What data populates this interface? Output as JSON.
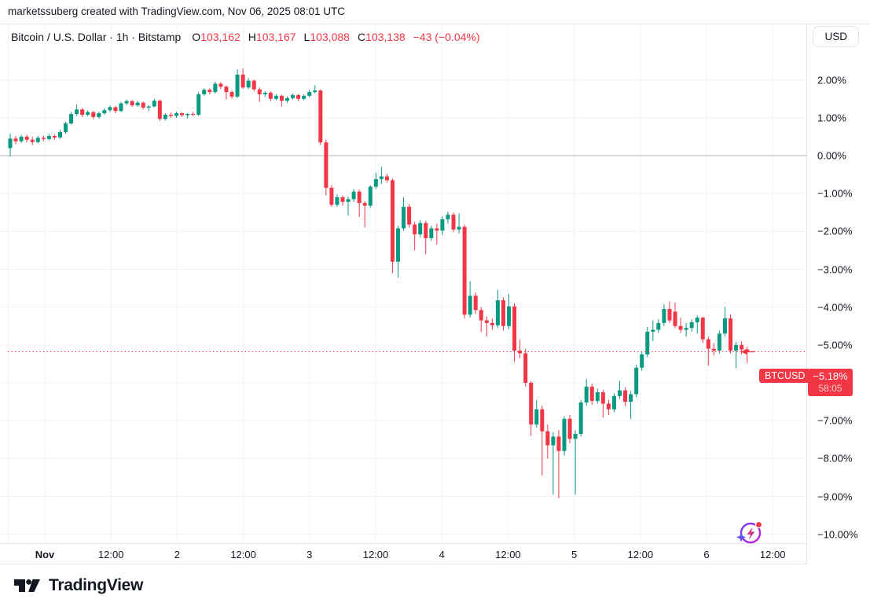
{
  "attribution": "marketssuberg created with TradingView.com, Nov 06, 2025 08:01 UTC",
  "legend": {
    "title": "Bitcoin / U.S. Dollar · 1h · Bitstamp",
    "o_label": "O",
    "o": "103,162",
    "h_label": "H",
    "h": "103,167",
    "l_label": "L",
    "l": "103,088",
    "c_label": "C",
    "c": "103,138",
    "change": "−43 (−0.04%)"
  },
  "currency_button": "USD",
  "price_label": {
    "symbol": "BTCUSD",
    "value": "−5.18%",
    "countdown": "58:05"
  },
  "footer": {
    "logo_text": "TradingView"
  },
  "colors": {
    "up": "#089981",
    "down": "#F23645",
    "grid": "#F0F3FA",
    "zero_line": "#B2B5BE",
    "border": "#E0E3EB",
    "text": "#131722",
    "badge_red": "#F23645",
    "spark_purple": "#9C27B0",
    "spark_star": "#6053F0"
  },
  "y_axis": {
    "ticks": [
      {
        "label": "2.00%",
        "pct": 2
      },
      {
        "label": "1.00%",
        "pct": 1
      },
      {
        "label": "0.00%",
        "pct": 0
      },
      {
        "label": "−1.00%",
        "pct": -1
      },
      {
        "label": "−2.00%",
        "pct": -2
      },
      {
        "label": "−3.00%",
        "pct": -3
      },
      {
        "label": "−4.00%",
        "pct": -4
      },
      {
        "label": "−5.00%",
        "pct": -5
      },
      {
        "label": "−6.00%",
        "pct": -6
      },
      {
        "label": "−7.00%",
        "pct": -7
      },
      {
        "label": "−8.00%",
        "pct": -8
      },
      {
        "label": "−9.00%",
        "pct": -9
      },
      {
        "label": "−10.00%",
        "pct": -10
      }
    ]
  },
  "x_axis": {
    "ticks": [
      {
        "label": "Nov",
        "bold": true
      },
      {
        "label": "12:00",
        "bold": false
      },
      {
        "label": "2",
        "bold": false
      },
      {
        "label": "12:00",
        "bold": false
      },
      {
        "label": "3",
        "bold": false
      },
      {
        "label": "12:00",
        "bold": false
      },
      {
        "label": "4",
        "bold": false
      },
      {
        "label": "12:00",
        "bold": false
      },
      {
        "label": "5",
        "bold": false
      },
      {
        "label": "12:00",
        "bold": false
      },
      {
        "label": "6",
        "bold": false
      },
      {
        "label": "12:00",
        "bold": false
      }
    ]
  },
  "chart_data": {
    "type": "candlestick",
    "title": "Bitcoin / U.S. Dollar",
    "symbol": "BTCUSD",
    "exchange": "Bitstamp",
    "interval": "1h",
    "scale": "percent-change",
    "ylim": [
      -10.5,
      2.5
    ],
    "grid": true,
    "last_close_pct": -5.18,
    "candles_ohlc_pct": [
      [
        0.2,
        0.58,
        -0.02,
        0.45
      ],
      [
        0.45,
        0.52,
        0.3,
        0.38
      ],
      [
        0.38,
        0.55,
        0.33,
        0.5
      ],
      [
        0.5,
        0.55,
        0.35,
        0.42
      ],
      [
        0.42,
        0.5,
        0.28,
        0.36
      ],
      [
        0.36,
        0.52,
        0.32,
        0.47
      ],
      [
        0.47,
        0.53,
        0.38,
        0.44
      ],
      [
        0.44,
        0.58,
        0.4,
        0.52
      ],
      [
        0.52,
        0.56,
        0.42,
        0.48
      ],
      [
        0.48,
        0.68,
        0.44,
        0.62
      ],
      [
        0.62,
        0.9,
        0.58,
        0.85
      ],
      [
        0.85,
        1.15,
        0.82,
        1.1
      ],
      [
        1.1,
        1.35,
        1.05,
        1.22
      ],
      [
        1.22,
        1.26,
        1.02,
        1.08
      ],
      [
        1.08,
        1.2,
        1.04,
        1.15
      ],
      [
        1.15,
        1.18,
        0.96,
        1.02
      ],
      [
        1.02,
        1.16,
        0.98,
        1.12
      ],
      [
        1.12,
        1.25,
        1.08,
        1.2
      ],
      [
        1.2,
        1.32,
        1.15,
        1.28
      ],
      [
        1.28,
        1.31,
        1.12,
        1.18
      ],
      [
        1.18,
        1.42,
        1.15,
        1.38
      ],
      [
        1.38,
        1.48,
        1.33,
        1.44
      ],
      [
        1.44,
        1.47,
        1.28,
        1.33
      ],
      [
        1.33,
        1.45,
        1.29,
        1.4
      ],
      [
        1.4,
        1.43,
        1.22,
        1.27
      ],
      [
        1.27,
        1.34,
        1.18,
        1.3
      ],
      [
        1.3,
        1.5,
        1.27,
        1.45
      ],
      [
        1.45,
        1.48,
        0.92,
        0.97
      ],
      [
        0.97,
        1.12,
        0.93,
        1.08
      ],
      [
        1.08,
        1.14,
        1.0,
        1.05
      ],
      [
        1.05,
        1.16,
        1.0,
        1.12
      ],
      [
        1.12,
        1.15,
        1.02,
        1.07
      ],
      [
        1.07,
        1.13,
        0.98,
        1.1
      ],
      [
        1.1,
        1.16,
        1.04,
        1.08
      ],
      [
        1.08,
        1.68,
        1.05,
        1.62
      ],
      [
        1.62,
        1.78,
        1.58,
        1.74
      ],
      [
        1.74,
        1.78,
        1.62,
        1.68
      ],
      [
        1.68,
        1.96,
        1.64,
        1.9
      ],
      [
        1.9,
        1.94,
        1.76,
        1.82
      ],
      [
        1.82,
        1.86,
        1.48,
        1.68
      ],
      [
        1.68,
        1.72,
        1.5,
        1.56
      ],
      [
        1.56,
        2.28,
        1.52,
        2.14
      ],
      [
        2.14,
        2.3,
        1.76,
        1.8
      ],
      [
        1.8,
        2.05,
        1.76,
        1.98
      ],
      [
        1.98,
        2.01,
        1.7,
        1.75
      ],
      [
        1.75,
        1.8,
        1.42,
        1.62
      ],
      [
        1.62,
        1.7,
        1.55,
        1.66
      ],
      [
        1.66,
        1.7,
        1.44,
        1.5
      ],
      [
        1.5,
        1.62,
        1.46,
        1.58
      ],
      [
        1.58,
        1.61,
        1.3,
        1.45
      ],
      [
        1.45,
        1.56,
        1.4,
        1.52
      ],
      [
        1.52,
        1.64,
        1.48,
        1.6
      ],
      [
        1.6,
        1.63,
        1.44,
        1.5
      ],
      [
        1.5,
        1.62,
        1.46,
        1.58
      ],
      [
        1.58,
        1.74,
        1.54,
        1.68
      ],
      [
        1.68,
        1.86,
        1.64,
        1.72
      ],
      [
        1.72,
        1.75,
        0.28,
        0.35
      ],
      [
        0.35,
        0.42,
        -1.05,
        -0.85
      ],
      [
        -0.85,
        -0.78,
        -1.35,
        -1.3
      ],
      [
        -1.3,
        -1.02,
        -1.35,
        -1.1
      ],
      [
        -1.1,
        -1.05,
        -1.32,
        -1.22
      ],
      [
        -1.22,
        -1.08,
        -1.58,
        -1.15
      ],
      [
        -1.15,
        -0.88,
        -1.22,
        -0.95
      ],
      [
        -0.95,
        -0.9,
        -1.62,
        -1.25
      ],
      [
        -1.25,
        -1.2,
        -1.9,
        -1.32
      ],
      [
        -1.32,
        -0.78,
        -1.38,
        -0.82
      ],
      [
        -0.82,
        -0.45,
        -0.88,
        -0.62
      ],
      [
        -0.62,
        -0.3,
        -0.75,
        -0.55
      ],
      [
        -0.55,
        -0.48,
        -0.72,
        -0.65
      ],
      [
        -0.65,
        -0.6,
        -3.1,
        -2.8
      ],
      [
        -2.8,
        -1.85,
        -3.22,
        -1.92
      ],
      [
        -1.92,
        -1.1,
        -1.98,
        -1.35
      ],
      [
        -1.35,
        -1.28,
        -1.9,
        -1.82
      ],
      [
        -1.82,
        -1.75,
        -2.5,
        -2.08
      ],
      [
        -2.08,
        -1.7,
        -2.15,
        -1.78
      ],
      [
        -1.78,
        -1.72,
        -2.6,
        -2.18
      ],
      [
        -2.18,
        -1.85,
        -2.25,
        -1.92
      ],
      [
        -1.92,
        -1.8,
        -2.35,
        -1.98
      ],
      [
        -1.98,
        -1.6,
        -2.1,
        -1.68
      ],
      [
        -1.68,
        -1.48,
        -1.8,
        -1.56
      ],
      [
        -1.56,
        -1.5,
        -2.02,
        -1.95
      ],
      [
        -1.95,
        -1.52,
        -2.05,
        -1.88
      ],
      [
        -1.88,
        -1.82,
        -4.3,
        -4.2
      ],
      [
        -4.2,
        -3.32,
        -4.28,
        -3.7
      ],
      [
        -3.7,
        -3.62,
        -4.18,
        -4.08
      ],
      [
        -4.08,
        -4.0,
        -4.65,
        -4.35
      ],
      [
        -4.35,
        -4.25,
        -4.78,
        -4.42
      ],
      [
        -4.42,
        -4.3,
        -4.6,
        -4.48
      ],
      [
        -4.48,
        -3.55,
        -4.55,
        -3.82
      ],
      [
        -3.82,
        -3.75,
        -4.62,
        -4.5
      ],
      [
        -4.5,
        -3.65,
        -4.58,
        -3.98
      ],
      [
        -3.98,
        -3.9,
        -5.45,
        -5.15
      ],
      [
        -5.15,
        -4.85,
        -5.35,
        -5.22
      ],
      [
        -5.22,
        -5.1,
        -6.1,
        -6.0
      ],
      [
        -6.0,
        -5.95,
        -7.4,
        -7.1
      ],
      [
        -7.1,
        -6.45,
        -7.18,
        -6.7
      ],
      [
        -6.7,
        -6.6,
        -8.45,
        -7.28
      ],
      [
        -7.28,
        -7.1,
        -8.0,
        -7.65
      ],
      [
        -7.65,
        -7.3,
        -8.95,
        -7.42
      ],
      [
        -7.42,
        -7.25,
        -9.05,
        -7.8
      ],
      [
        -7.8,
        -6.88,
        -7.92,
        -6.95
      ],
      [
        -6.95,
        -6.85,
        -7.6,
        -7.48
      ],
      [
        -7.48,
        -7.25,
        -8.95,
        -7.35
      ],
      [
        -7.35,
        -6.45,
        -7.42,
        -6.52
      ],
      [
        -6.52,
        -5.9,
        -6.6,
        -6.1
      ],
      [
        -6.1,
        -6.02,
        -6.58,
        -6.48
      ],
      [
        -6.48,
        -6.15,
        -6.55,
        -6.25
      ],
      [
        -6.25,
        -6.18,
        -6.92,
        -6.55
      ],
      [
        -6.55,
        -6.45,
        -6.85,
        -6.7
      ],
      [
        -6.7,
        -6.28,
        -6.78,
        -6.35
      ],
      [
        -6.35,
        -5.95,
        -6.42,
        -6.2
      ],
      [
        -6.2,
        -6.12,
        -6.62,
        -6.5
      ],
      [
        -6.5,
        -6.22,
        -6.95,
        -6.3
      ],
      [
        -6.3,
        -5.52,
        -6.38,
        -5.6
      ],
      [
        -5.6,
        -5.18,
        -5.68,
        -5.25
      ],
      [
        -5.25,
        -4.52,
        -5.32,
        -4.65
      ],
      [
        -4.65,
        -4.35,
        -4.9,
        -4.6
      ],
      [
        -4.6,
        -4.32,
        -4.68,
        -4.42
      ],
      [
        -4.42,
        -3.92,
        -4.5,
        -4.05
      ],
      [
        -4.05,
        -3.85,
        -4.42,
        -4.35
      ],
      [
        -4.12,
        -3.88,
        -4.55,
        -4.5
      ],
      [
        -4.5,
        -4.28,
        -4.68,
        -4.6
      ],
      [
        -4.6,
        -4.42,
        -4.78,
        -4.55
      ],
      [
        -4.55,
        -4.32,
        -4.65,
        -4.4
      ],
      [
        -4.4,
        -4.22,
        -4.7,
        -4.28
      ],
      [
        -4.28,
        -4.25,
        -4.95,
        -4.85
      ],
      [
        -4.85,
        -4.78,
        -5.55,
        -5.1
      ],
      [
        -5.1,
        -4.95,
        -5.28,
        -5.15
      ],
      [
        -5.15,
        -4.62,
        -5.22,
        -4.7
      ],
      [
        -4.7,
        -4.0,
        -4.78,
        -4.3
      ],
      [
        -4.3,
        -4.2,
        -5.22,
        -5.15
      ],
      [
        -5.15,
        -4.92,
        -5.62,
        -5.0
      ],
      [
        -5.0,
        -4.9,
        -5.25,
        -5.12
      ],
      [
        -5.12,
        -5.05,
        -5.48,
        -5.18
      ]
    ]
  }
}
